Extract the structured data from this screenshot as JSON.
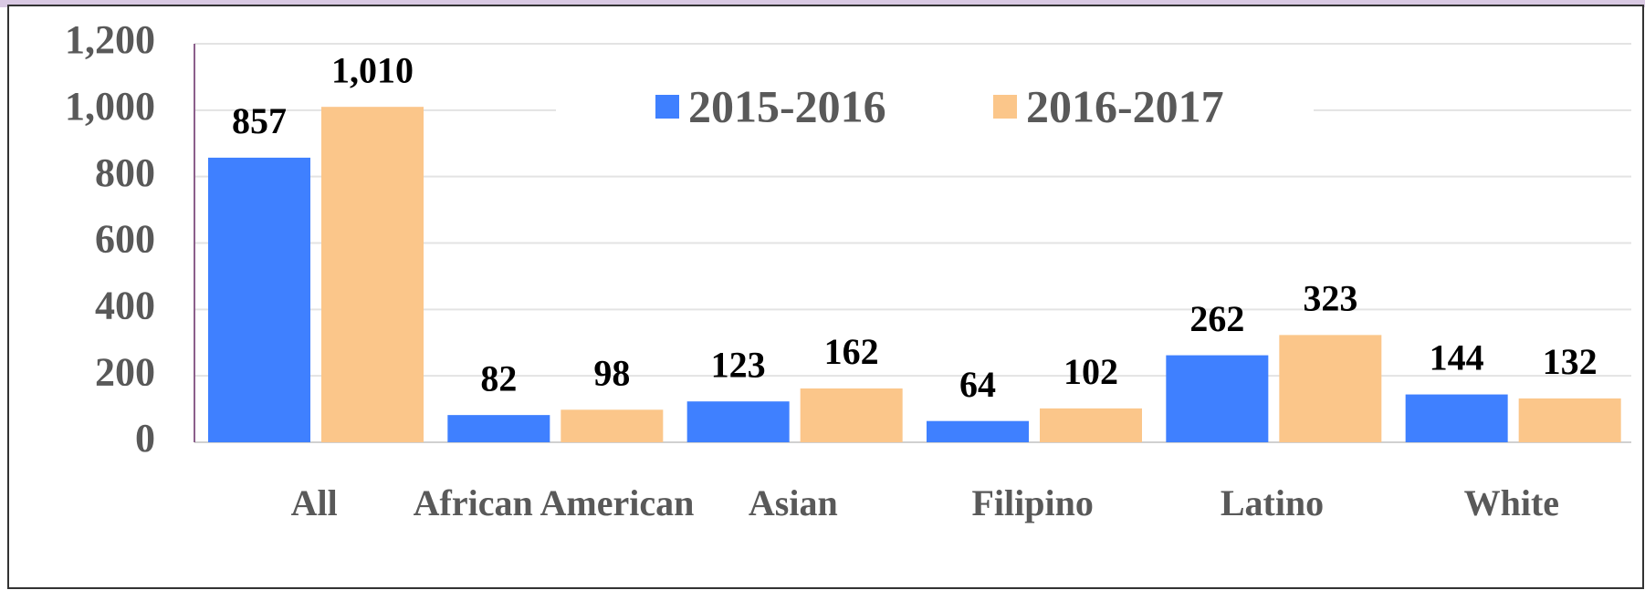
{
  "chart_data": {
    "type": "bar",
    "categories": [
      "All",
      "African American",
      "Asian",
      "Filipino",
      "Latino",
      "White"
    ],
    "series": [
      {
        "name": "2015-2016",
        "color": "#3f80ff",
        "values": [
          857,
          82,
          123,
          64,
          262,
          144
        ],
        "value_labels": [
          "857",
          "82",
          "123",
          "64",
          "262",
          "144"
        ]
      },
      {
        "name": "2016-2017",
        "color": "#fbc68a",
        "values": [
          1010,
          98,
          162,
          102,
          323,
          132
        ],
        "value_labels": [
          "1,010",
          "98",
          "162",
          "102",
          "323",
          "132"
        ]
      }
    ],
    "ylim": [
      0,
      1200
    ],
    "yticks": [
      0,
      200,
      400,
      600,
      800,
      {
        "value": 1000,
        "label": "1,000"
      },
      {
        "value": 1200,
        "label": "1,200"
      }
    ],
    "grid": true,
    "legend": "top"
  }
}
